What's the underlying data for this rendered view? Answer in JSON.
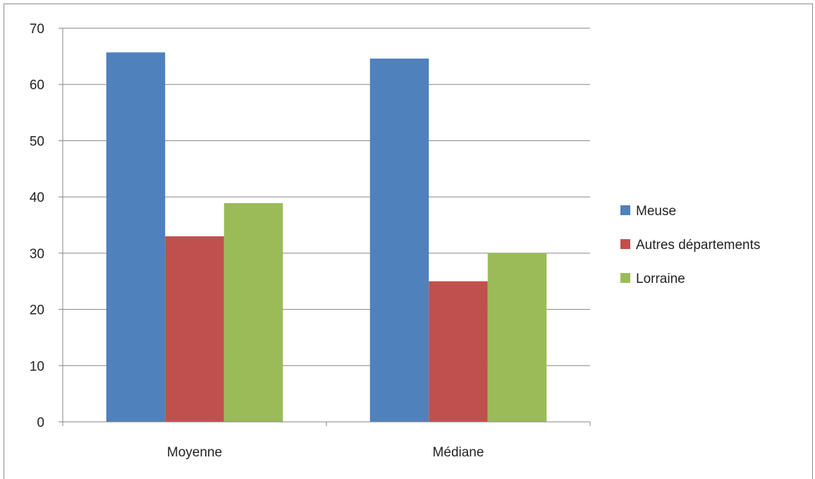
{
  "chart_data": {
    "type": "bar",
    "categories": [
      "Moyenne",
      "Médiane"
    ],
    "series": [
      {
        "name": "Meuse",
        "color": "#4f81bd",
        "values": [
          65.7,
          64.6
        ]
      },
      {
        "name": "Autres départements",
        "color": "#c0504d",
        "values": [
          33.0,
          25.0
        ]
      },
      {
        "name": "Lorraine",
        "color": "#9bbb59",
        "values": [
          38.9,
          30.0
        ]
      }
    ],
    "ylim": [
      0,
      70
    ],
    "yticks": [
      0,
      10,
      20,
      30,
      40,
      50,
      60,
      70
    ],
    "ytick_labels": [
      "0",
      "10",
      "20",
      "30",
      "40",
      "50",
      "60",
      "70"
    ],
    "grid": true,
    "legend_position": "right"
  }
}
